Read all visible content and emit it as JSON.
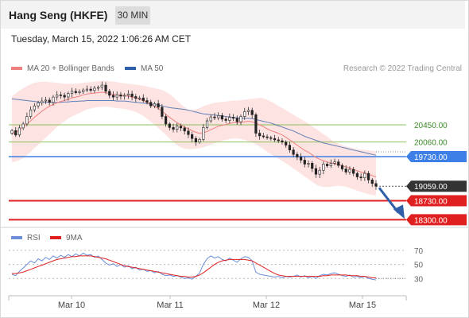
{
  "header": {
    "title": "Hang Seng (HKFE)",
    "interval": "30 MIN"
  },
  "timestamp": "Tuesday, March 15, 2022 1:06:26 AM CET",
  "legend": {
    "ma20": "MA 20 + Bollinger Bands",
    "ma50": "MA 50",
    "credit": "Research © 2022 Trading Central",
    "rsi": "RSI",
    "rsi_ma": "9MA"
  },
  "colors": {
    "ma20": "#f08080",
    "ma50": "#2e5fa8",
    "bollinger_fill": "#fde0de",
    "resistance": "#8bbf5c",
    "pivot": "#3d7fe6",
    "support": "#e02020",
    "current_price_bg": "#333333",
    "arrow": "#2e5fa8",
    "rsi": "#6a8fd8",
    "rsi_ma": "#e02020"
  },
  "chart_data": {
    "type": "candlestick",
    "x_tick_labels": [
      "Mar 10",
      "Mar 11",
      "Mar 12",
      "Mar 15"
    ],
    "price_range": [
      18180,
      21550
    ],
    "levels": [
      {
        "value": 20450,
        "label": "20450.00",
        "kind": "resistance"
      },
      {
        "value": 20060,
        "label": "20060.00",
        "kind": "resistance"
      },
      {
        "value": 19730,
        "label": "19730.00",
        "kind": "pivot"
      },
      {
        "value": 19059,
        "label": "19059.00",
        "kind": "current"
      },
      {
        "value": 18730,
        "label": "18730.00",
        "kind": "support"
      },
      {
        "value": 18300,
        "label": "18300.00",
        "kind": "support"
      }
    ],
    "closes": [
      20320,
      20220,
      20380,
      20470,
      20640,
      20790,
      20880,
      20950,
      20990,
      21010,
      20960,
      21080,
      21130,
      21120,
      21080,
      21160,
      21210,
      21180,
      21200,
      21240,
      21260,
      21230,
      21280,
      21300,
      21350,
      21210,
      21120,
      21080,
      21130,
      21100,
      21120,
      21150,
      21090,
      21050,
      21060,
      21000,
      20960,
      20880,
      20930,
      20850,
      20640,
      20470,
      20390,
      20350,
      20420,
      20380,
      20310,
      20230,
      20140,
      20060,
      20120,
      20390,
      20540,
      20630,
      20610,
      20660,
      20580,
      20550,
      20620,
      20600,
      20520,
      20640,
      20750,
      20780,
      20680,
      20260,
      20200,
      20180,
      20160,
      20140,
      20110,
      20090,
      20060,
      19990,
      19880,
      19780,
      19720,
      19650,
      19560,
      19580,
      19460,
      19330,
      19420,
      19560,
      19520,
      19580,
      19610,
      19530,
      19450,
      19380,
      19440,
      19350,
      19270,
      19250,
      19350,
      19200,
      19120,
      19059
    ],
    "ma20": [
      20250,
      20280,
      20340,
      20400,
      20470,
      20540,
      20620,
      20690,
      20760,
      20820,
      20870,
      20910,
      20950,
      20980,
      21000,
      21030,
      21060,
      21080,
      21100,
      21130,
      21150,
      21160,
      21170,
      21180,
      21190,
      21180,
      21160,
      21140,
      21130,
      21120,
      21110,
      21100,
      21080,
      21060,
      21030,
      21000,
      20960,
      20910,
      20870,
      20820,
      20760,
      20690,
      20620,
      20560,
      20500,
      20450,
      20400,
      20360,
      20320,
      20280,
      20260,
      20270,
      20300,
      20340,
      20380,
      20420,
      20440,
      20460,
      20480,
      20500,
      20500,
      20510,
      20520,
      20530,
      20520,
      20490,
      20450,
      20410,
      20360,
      20320,
      20290,
      20260,
      20220,
      20170,
      20110,
      20050,
      19990,
      19930,
      19870,
      19830,
      19770,
      19710,
      19670,
      19640,
      19610,
      19590,
      19570,
      19550,
      19520,
      19500,
      19470,
      19440,
      19410,
      19380,
      19360,
      19330,
      19300,
      19270
    ],
    "ma50": [
      21040,
      21030,
      21020,
      21010,
      21000,
      20990,
      20980,
      20970,
      20960,
      20960,
      20960,
      20960,
      20960,
      20960,
      20970,
      20970,
      20980,
      20980,
      20990,
      20990,
      21000,
      21000,
      21000,
      21000,
      21000,
      21000,
      21000,
      21000,
      20990,
      20990,
      20990,
      20980,
      20970,
      20960,
      20950,
      20940,
      20930,
      20920,
      20910,
      20900,
      20880,
      20860,
      20840,
      20830,
      20820,
      20810,
      20800,
      20780,
      20760,
      20740,
      20720,
      20700,
      20690,
      20680,
      20670,
      20660,
      20650,
      20640,
      20630,
      20620,
      20610,
      20600,
      20600,
      20600,
      20590,
      20570,
      20550,
      20530,
      20510,
      20490,
      20460,
      20430,
      20400,
      20370,
      20340,
      20310,
      20270,
      20230,
      20190,
      20160,
      20130,
      20100,
      20070,
      20040,
      20020,
      20000,
      19980,
      19960,
      19940,
      19920,
      19900,
      19880,
      19860,
      19840,
      19820,
      19800,
      19780,
      19760
    ],
    "bollinger_upper": [
      21100,
      21160,
      21220,
      21280,
      21330,
      21370,
      21400,
      21420,
      21430,
      21430,
      21420,
      21410,
      21400,
      21390,
      21380,
      21380,
      21380,
      21380,
      21390,
      21400,
      21410,
      21420,
      21430,
      21440,
      21450,
      21450,
      21440,
      21430,
      21420,
      21400,
      21390,
      21380,
      21370,
      21360,
      21350,
      21340,
      21320,
      21300,
      21280,
      21260,
      21240,
      21200,
      21150,
      21080,
      21000,
      20920,
      20850,
      20800,
      20790,
      20800,
      20830,
      20870,
      20900,
      20930,
      20950,
      20960,
      20970,
      20980,
      20990,
      21000,
      21000,
      21010,
      21020,
      21030,
      21040,
      21050,
      21060,
      21050,
      21020,
      20980,
      20930,
      20880,
      20830,
      20780,
      20730,
      20680,
      20630,
      20580,
      20530,
      20480,
      20420,
      20360,
      20300,
      20240,
      20180,
      20120,
      20060,
      20020,
      19990,
      19960,
      19940,
      19920,
      19900,
      19890,
      19880,
      19870,
      19860,
      19850
    ],
    "bollinger_lower": [
      19600,
      19620,
      19650,
      19700,
      19760,
      19840,
      19920,
      20000,
      20080,
      20160,
      20240,
      20320,
      20400,
      20470,
      20530,
      20590,
      20640,
      20680,
      20720,
      20760,
      20800,
      20820,
      20840,
      20850,
      20860,
      20860,
      20850,
      20840,
      20830,
      20820,
      20810,
      20790,
      20770,
      20740,
      20700,
      20650,
      20590,
      20520,
      20450,
      20380,
      20300,
      20220,
      20140,
      20060,
      19990,
      19940,
      19910,
      19900,
      19900,
      19910,
      19920,
      19940,
      19970,
      20000,
      20030,
      20060,
      20090,
      20110,
      20130,
      20140,
      20140,
      20130,
      20110,
      20080,
      20050,
      20010,
      19960,
      19900,
      19840,
      19780,
      19730,
      19680,
      19630,
      19580,
      19520,
      19460,
      19400,
      19340,
      19280,
      19220,
      19160,
      19100,
      19060,
      19040,
      19040,
      19050,
      19060,
      19070,
      19060,
      19050,
      19020,
      18990,
      18960,
      18930,
      18900,
      18880,
      18860,
      18840
    ],
    "rsi": {
      "y_tick_labels": [
        "70",
        "50",
        "30"
      ],
      "range": [
        10,
        80
      ],
      "rsi": [
        36,
        34,
        40,
        45,
        50,
        55,
        52,
        58,
        55,
        60,
        57,
        62,
        59,
        63,
        60,
        64,
        61,
        65,
        62,
        66,
        63,
        64,
        60,
        62,
        57,
        52,
        49,
        51,
        47,
        50,
        46,
        48,
        44,
        46,
        42,
        43,
        40,
        41,
        38,
        40,
        36,
        34,
        35,
        33,
        34,
        32,
        30,
        31,
        29,
        33,
        38,
        50,
        58,
        62,
        59,
        61,
        57,
        55,
        59,
        56,
        53,
        58,
        61,
        60,
        55,
        39,
        36,
        35,
        34,
        33,
        32,
        33,
        31,
        33,
        32,
        33,
        35,
        32,
        34,
        31,
        33,
        30,
        34,
        36,
        35,
        37,
        38,
        36,
        34,
        33,
        35,
        32,
        33,
        31,
        33,
        30,
        29,
        28
      ],
      "ma": [
        37,
        37,
        38,
        39,
        41,
        43,
        45,
        47,
        49,
        51,
        53,
        55,
        57,
        58,
        59,
        60,
        61,
        61,
        62,
        62,
        62,
        62,
        61,
        60,
        59,
        58,
        56,
        54,
        52,
        50,
        48,
        47,
        46,
        45,
        44,
        43,
        42,
        41,
        40,
        39,
        38,
        37,
        36,
        35,
        34,
        33,
        33,
        32,
        32,
        33,
        35,
        38,
        42,
        46,
        50,
        53,
        55,
        56,
        57,
        57,
        57,
        57,
        57,
        56,
        55,
        52,
        49,
        46,
        43,
        40,
        37,
        35,
        34,
        33,
        33,
        33,
        33,
        33,
        33,
        33,
        33,
        33,
        33,
        34,
        34,
        35,
        35,
        35,
        35,
        35,
        34,
        34,
        34,
        33,
        33,
        32,
        31,
        31
      ]
    }
  }
}
